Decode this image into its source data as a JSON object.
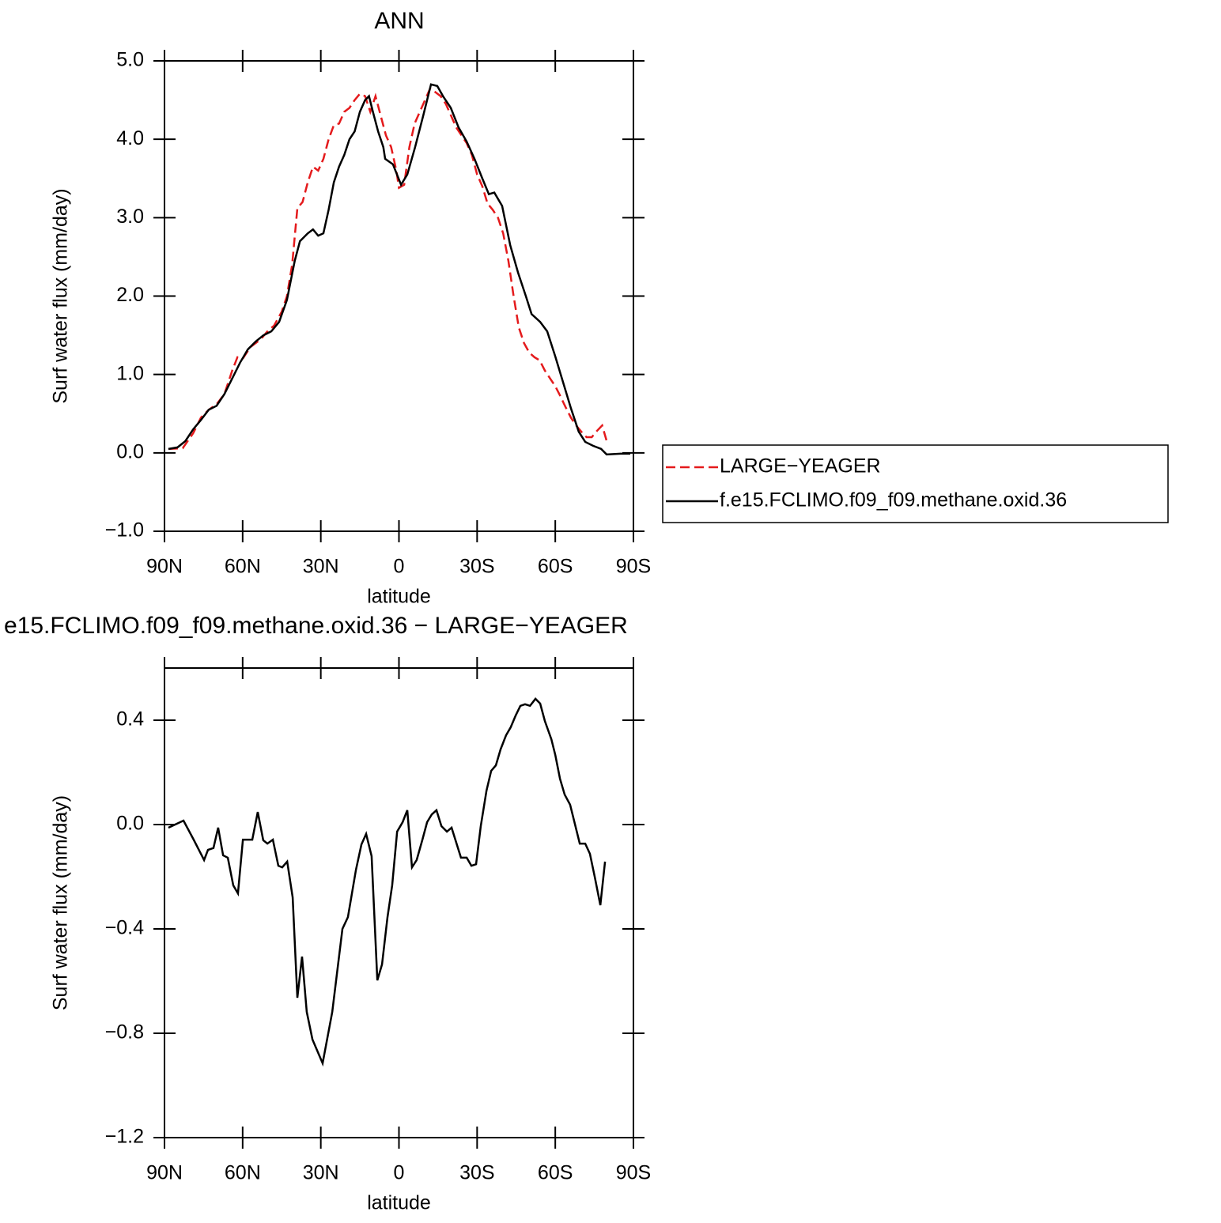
{
  "chart_data": [
    {
      "type": "line",
      "title": "ANN",
      "xlabel": "latitude",
      "ylabel": "Surf water flux (mm/day)",
      "xlim": [
        90,
        -90
      ],
      "ylim": [
        -1.0,
        5.0
      ],
      "xticks": [
        {
          "value": 90,
          "label": "90N"
        },
        {
          "value": 60,
          "label": "60N"
        },
        {
          "value": 30,
          "label": "30N"
        },
        0,
        {
          "value": -30,
          "label": "30S"
        },
        {
          "value": -60,
          "label": "60S"
        },
        {
          "value": -90,
          "label": "90S"
        }
      ],
      "yticks": [
        {
          "value": -1.0,
          "label": "−1.0"
        },
        {
          "value": 0.0,
          "label": "0.0"
        },
        {
          "value": 1.0,
          "label": "1.0"
        },
        {
          "value": 2.0,
          "label": "2.0"
        },
        {
          "value": 3.0,
          "label": "3.0"
        },
        {
          "value": 4.0,
          "label": "4.0"
        },
        {
          "value": 5.0,
          "label": "5.0"
        }
      ],
      "legend": "right",
      "series": [
        {
          "name": "LARGE−YEAGER",
          "color": "#e41a1c",
          "dash": true,
          "x": [
            88.5,
            83,
            79,
            76,
            73,
            70,
            67,
            64,
            62,
            60,
            57,
            55,
            53,
            50,
            48,
            45,
            43,
            41,
            39,
            37,
            35,
            33,
            31,
            29,
            27,
            25,
            23,
            21,
            19,
            17,
            15,
            13,
            11,
            9,
            7,
            5,
            3,
            1,
            0,
            -2,
            -4,
            -6,
            -8,
            -10,
            -12,
            -14,
            -16,
            -18,
            -20,
            -22,
            -24,
            -26,
            -28,
            -30,
            -32,
            -34,
            -36,
            -38,
            -40,
            -42,
            -44,
            -46,
            -48,
            -50,
            -52,
            -54,
            -56,
            -58,
            -60,
            -62,
            -64,
            -66,
            -68,
            -70,
            -72,
            -74,
            -76,
            -78,
            -80
          ],
          "values": [
            0.05,
            0.06,
            0.25,
            0.45,
            0.55,
            0.62,
            0.75,
            1.05,
            1.22,
            1.2,
            1.35,
            1.4,
            1.45,
            1.57,
            1.62,
            1.8,
            2.0,
            2.4,
            3.12,
            3.2,
            3.45,
            3.65,
            3.6,
            3.75,
            4.0,
            4.18,
            4.2,
            4.35,
            4.4,
            4.5,
            4.58,
            4.55,
            4.35,
            4.55,
            4.3,
            4.05,
            3.9,
            3.6,
            3.38,
            3.42,
            3.9,
            4.2,
            4.35,
            4.5,
            4.65,
            4.6,
            4.55,
            4.45,
            4.3,
            4.15,
            4.05,
            3.95,
            3.8,
            3.55,
            3.4,
            3.18,
            3.1,
            3.0,
            2.8,
            2.45,
            2.0,
            1.6,
            1.4,
            1.28,
            1.22,
            1.18,
            1.05,
            0.95,
            0.85,
            0.72,
            0.58,
            0.45,
            0.35,
            0.27,
            0.2,
            0.2,
            0.28,
            0.35,
            0.12
          ]
        },
        {
          "name": "f.e15.FCLIMO.f09_f09.methane.oxid.36",
          "color": "#000000",
          "dash": false,
          "x": [
            88.5,
            85,
            82,
            79,
            76,
            73,
            70,
            67,
            64,
            61,
            58,
            55,
            52,
            49,
            46,
            43,
            40,
            38,
            35,
            33,
            31,
            29,
            27,
            25,
            23,
            21,
            19,
            17,
            15,
            13,
            11.5,
            10,
            8,
            6,
            5.3,
            2.3,
            -0.8,
            -3.2,
            -6.2,
            -9.3,
            -12.3,
            -14.7,
            -16.9,
            -19.9,
            -22.9,
            -26,
            -29,
            -32,
            -34.5,
            -36.6,
            -39.6,
            -42.7,
            -45.7,
            -48.7,
            -50.9,
            -54.2,
            -56.9,
            -60,
            -63,
            -66,
            -69,
            -71.5,
            -74.5,
            -77.6,
            -79.7,
            -85,
            -88.8
          ],
          "values": [
            0.05,
            0.07,
            0.15,
            0.3,
            0.42,
            0.55,
            0.6,
            0.75,
            0.95,
            1.15,
            1.32,
            1.42,
            1.5,
            1.55,
            1.67,
            1.95,
            2.45,
            2.7,
            2.8,
            2.85,
            2.77,
            2.8,
            3.1,
            3.45,
            3.65,
            3.8,
            4.0,
            4.1,
            4.35,
            4.5,
            4.55,
            4.35,
            4.1,
            3.9,
            3.75,
            3.68,
            3.42,
            3.55,
            3.9,
            4.3,
            4.7,
            4.68,
            4.55,
            4.4,
            4.15,
            3.97,
            3.75,
            3.5,
            3.3,
            3.32,
            3.15,
            2.65,
            2.3,
            2.0,
            1.77,
            1.67,
            1.55,
            1.23,
            0.9,
            0.57,
            0.27,
            0.14,
            0.09,
            0.05,
            -0.02,
            -0.01,
            -0.01
          ]
        }
      ]
    },
    {
      "type": "line",
      "title": "e15.FCLIMO.f09_f09.methane.oxid.36 − LARGE−YEAGER",
      "xlabel": "latitude",
      "ylabel": "Surf water flux (mm/day)",
      "xlim": [
        90,
        -90
      ],
      "ylim": [
        -1.2,
        0.6
      ],
      "xticks": [
        {
          "value": 90,
          "label": "90N"
        },
        {
          "value": 60,
          "label": "60N"
        },
        {
          "value": 30,
          "label": "30N"
        },
        0,
        {
          "value": -30,
          "label": "30S"
        },
        {
          "value": -60,
          "label": "60S"
        },
        {
          "value": -90,
          "label": "90S"
        }
      ],
      "yticks": [
        {
          "value": -1.2,
          "label": "−1.2"
        },
        {
          "value": -0.8,
          "label": "−0.8"
        },
        {
          "value": -0.4,
          "label": "−0.4"
        },
        {
          "value": 0.0,
          "label": "0.0"
        },
        {
          "value": 0.4,
          "label": "0.4"
        }
      ],
      "series": [
        {
          "color": "#000000",
          "dash": false,
          "x": [
            88.5,
            82.7,
            78.8,
            74.8,
            73.3,
            71.2,
            69.4,
            67.5,
            65.7,
            63.6,
            61.8,
            59.9,
            56.3,
            54.2,
            52.1,
            50.5,
            48.4,
            46.3,
            44.8,
            42.9,
            40.8,
            39,
            37.2,
            35.4,
            33.2,
            29.3,
            25.6,
            21.7,
            19.6,
            16.5,
            14.4,
            12.6,
            10.5,
            8.3,
            6.5,
            4.4,
            2.6,
            0.7,
            -1.4,
            -3.2,
            -5.0,
            -6.8,
            -9.0,
            -10.8,
            -12.6,
            -14.4,
            -16.3,
            -18.4,
            -20.2,
            -23.8,
            -26,
            -27.8,
            -29.6,
            -31.4,
            -33.6,
            -35.4,
            -37.2,
            -39,
            -41.1,
            -42.9,
            -44.8,
            -46.6,
            -48.4,
            -50.3,
            -52.4,
            -54.2,
            -56,
            -58.5,
            -60,
            -61.8,
            -63.6,
            -65.7,
            -69.4,
            -71.5,
            -73.3,
            -75.2,
            -77.3,
            -79.1
          ],
          "values": [
            -0.012,
            0.015,
            -0.058,
            -0.136,
            -0.097,
            -0.09,
            -0.012,
            -0.118,
            -0.127,
            -0.233,
            -0.264,
            -0.058,
            -0.058,
            0.048,
            -0.06,
            -0.073,
            -0.058,
            -0.158,
            -0.164,
            -0.142,
            -0.279,
            -0.664,
            -0.506,
            -0.718,
            -0.824,
            -0.915,
            -0.718,
            -0.4,
            -0.355,
            -0.173,
            -0.076,
            -0.036,
            -0.121,
            -0.597,
            -0.536,
            -0.355,
            -0.233,
            -0.027,
            0.009,
            0.055,
            -0.164,
            -0.136,
            -0.058,
            0.009,
            0.039,
            0.055,
            -0.006,
            -0.027,
            -0.012,
            -0.127,
            -0.127,
            -0.158,
            -0.152,
            -0.006,
            0.13,
            0.206,
            0.227,
            0.288,
            0.342,
            0.373,
            0.418,
            0.455,
            0.461,
            0.455,
            0.482,
            0.464,
            0.397,
            0.327,
            0.267,
            0.176,
            0.115,
            0.076,
            -0.073,
            -0.073,
            -0.112,
            -0.203,
            -0.309,
            -0.142
          ]
        }
      ]
    }
  ]
}
